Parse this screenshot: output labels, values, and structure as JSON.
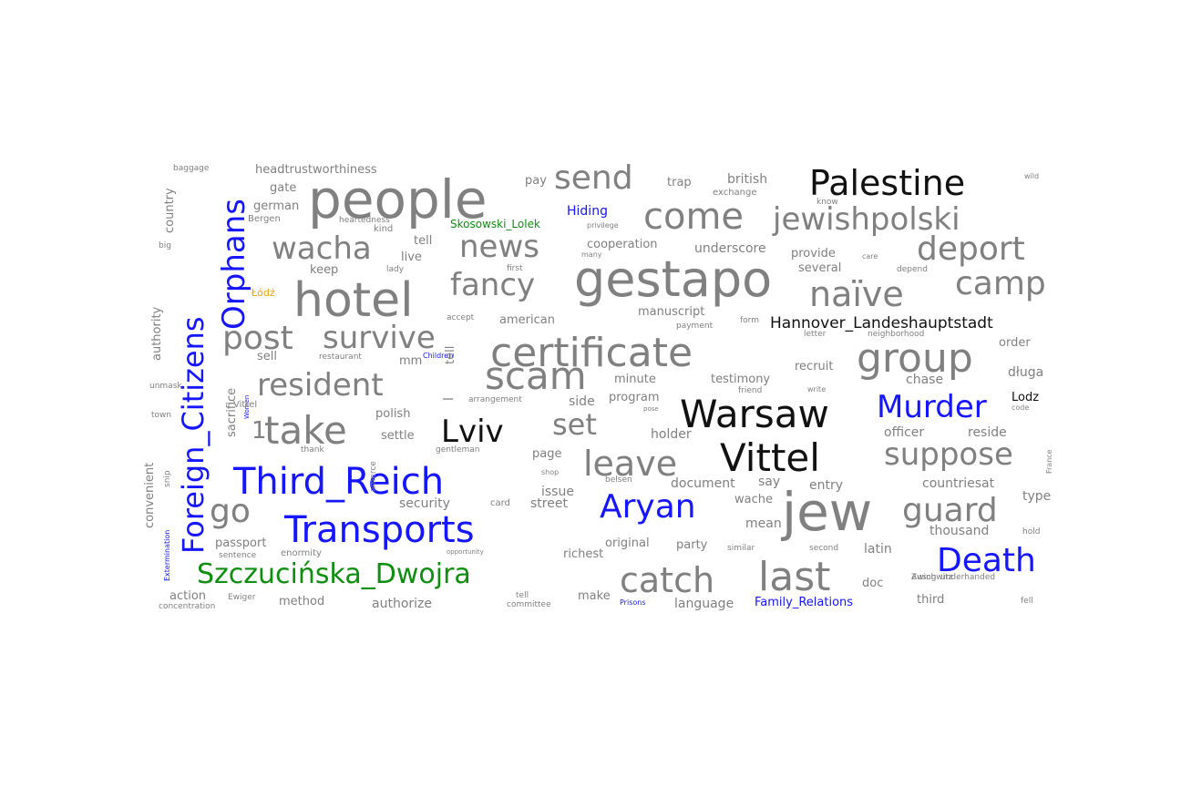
{
  "colors": {
    "gray": "#808080",
    "black": "#111111",
    "blue": "#1515ff",
    "green": "#0f8f0f",
    "orange": "#f5a000"
  },
  "words": [
    {
      "text": "people",
      "color": "gray"
    },
    {
      "text": "gestapo",
      "color": "gray"
    },
    {
      "text": "hotel",
      "color": "gray"
    },
    {
      "text": "jew",
      "color": "gray"
    },
    {
      "text": "certificate",
      "color": "gray"
    },
    {
      "text": "Warsaw",
      "color": "black"
    },
    {
      "text": "Vittel",
      "color": "black"
    },
    {
      "text": "Palestine",
      "color": "black"
    },
    {
      "text": "Lviv",
      "color": "black"
    },
    {
      "text": "Hannover_Landeshauptstadt",
      "color": "black"
    },
    {
      "text": "Lodz",
      "color": "black"
    },
    {
      "text": "Third_Reich",
      "color": "blue"
    },
    {
      "text": "Transports",
      "color": "blue"
    },
    {
      "text": "Foreign_Citizens",
      "color": "blue"
    },
    {
      "text": "Orphans",
      "color": "blue"
    },
    {
      "text": "Aryan",
      "color": "blue"
    },
    {
      "text": "Murder",
      "color": "blue"
    },
    {
      "text": "Death",
      "color": "blue"
    },
    {
      "text": "Hiding",
      "color": "blue"
    },
    {
      "text": "Family_Relations",
      "color": "blue"
    },
    {
      "text": "Children",
      "color": "blue"
    },
    {
      "text": "Prisons",
      "color": "blue"
    },
    {
      "text": "Extermination",
      "color": "blue"
    },
    {
      "text": "Women",
      "color": "blue"
    },
    {
      "text": "Szczucińska_Dwojra",
      "color": "green"
    },
    {
      "text": "Skosowski_Lolek",
      "color": "green"
    },
    {
      "text": "Łódź",
      "color": "orange"
    },
    {
      "text": "come",
      "color": "gray"
    },
    {
      "text": "send",
      "color": "gray"
    },
    {
      "text": "jewishpolski",
      "color": "gray"
    },
    {
      "text": "deport",
      "color": "gray"
    },
    {
      "text": "camp",
      "color": "gray"
    },
    {
      "text": "naïve",
      "color": "gray"
    },
    {
      "text": "group",
      "color": "gray"
    },
    {
      "text": "fancy",
      "color": "gray"
    },
    {
      "text": "news",
      "color": "gray"
    },
    {
      "text": "wacha",
      "color": "gray"
    },
    {
      "text": "survive",
      "color": "gray"
    },
    {
      "text": "post",
      "color": "gray"
    },
    {
      "text": "scam",
      "color": "gray"
    },
    {
      "text": "resident",
      "color": "gray"
    },
    {
      "text": "take",
      "color": "gray"
    },
    {
      "text": "set",
      "color": "gray"
    },
    {
      "text": "leave",
      "color": "gray"
    },
    {
      "text": "suppose",
      "color": "gray"
    },
    {
      "text": "guard",
      "color": "gray"
    },
    {
      "text": "catch",
      "color": "gray"
    },
    {
      "text": "last",
      "color": "gray"
    },
    {
      "text": "go",
      "color": "gray"
    },
    {
      "text": "headtrustworthiness",
      "color": "gray"
    },
    {
      "text": "baggage",
      "color": "gray"
    },
    {
      "text": "country",
      "color": "gray"
    },
    {
      "text": "gate",
      "color": "gray"
    },
    {
      "text": "german",
      "color": "gray"
    },
    {
      "text": "Bergen",
      "color": "gray"
    },
    {
      "text": "big",
      "color": "gray"
    },
    {
      "text": "pay",
      "color": "gray"
    },
    {
      "text": "trap",
      "color": "gray"
    },
    {
      "text": "british",
      "color": "gray"
    },
    {
      "text": "exchange",
      "color": "gray"
    },
    {
      "text": "know",
      "color": "gray"
    },
    {
      "text": "wild",
      "color": "gray"
    },
    {
      "text": "heartedness",
      "color": "gray"
    },
    {
      "text": "kind",
      "color": "gray"
    },
    {
      "text": "privilege",
      "color": "gray"
    },
    {
      "text": "tell",
      "color": "gray"
    },
    {
      "text": "cooperation",
      "color": "gray"
    },
    {
      "text": "underscore",
      "color": "gray"
    },
    {
      "text": "provide",
      "color": "gray"
    },
    {
      "text": "care",
      "color": "gray"
    },
    {
      "text": "live",
      "color": "gray"
    },
    {
      "text": "many",
      "color": "gray"
    },
    {
      "text": "keep",
      "color": "gray"
    },
    {
      "text": "lady",
      "color": "gray"
    },
    {
      "text": "first",
      "color": "gray"
    },
    {
      "text": "several",
      "color": "gray"
    },
    {
      "text": "depend",
      "color": "gray"
    },
    {
      "text": "authority",
      "color": "gray"
    },
    {
      "text": "accept",
      "color": "gray"
    },
    {
      "text": "american",
      "color": "gray"
    },
    {
      "text": "manuscript",
      "color": "gray"
    },
    {
      "text": "payment",
      "color": "gray"
    },
    {
      "text": "form",
      "color": "gray"
    },
    {
      "text": "letter",
      "color": "gray"
    },
    {
      "text": "neighborhood",
      "color": "gray"
    },
    {
      "text": "order",
      "color": "gray"
    },
    {
      "text": "sell",
      "color": "gray"
    },
    {
      "text": "mm",
      "color": "gray"
    },
    {
      "text": "restaurant",
      "color": "gray"
    },
    {
      "text": "minute",
      "color": "gray"
    },
    {
      "text": "testimony",
      "color": "gray"
    },
    {
      "text": "friend",
      "color": "gray"
    },
    {
      "text": "recruit",
      "color": "gray"
    },
    {
      "text": "write",
      "color": "gray"
    },
    {
      "text": "chase",
      "color": "gray"
    },
    {
      "text": "długa",
      "color": "gray"
    },
    {
      "text": "unmask",
      "color": "gray"
    },
    {
      "text": "town",
      "color": "gray"
    },
    {
      "text": "sacrifice",
      "color": "gray"
    },
    {
      "text": "tell",
      "color": "gray"
    },
    {
      "text": "arrangement",
      "color": "gray"
    },
    {
      "text": "side",
      "color": "gray"
    },
    {
      "text": "program",
      "color": "gray"
    },
    {
      "text": "pose",
      "color": "gray"
    },
    {
      "text": "code",
      "color": "gray"
    },
    {
      "text": "polish",
      "color": "gray"
    },
    {
      "text": "settle",
      "color": "gray"
    },
    {
      "text": "holder",
      "color": "gray"
    },
    {
      "text": "officer",
      "color": "gray"
    },
    {
      "text": "reside",
      "color": "gray"
    },
    {
      "text": "thank",
      "color": "gray"
    },
    {
      "text": "gentleman",
      "color": "gray"
    },
    {
      "text": "page",
      "color": "gray"
    },
    {
      "text": "shop",
      "color": "gray"
    },
    {
      "text": "belsen",
      "color": "gray"
    },
    {
      "text": "document",
      "color": "gray"
    },
    {
      "text": "say",
      "color": "gray"
    },
    {
      "text": "entry",
      "color": "gray"
    },
    {
      "text": "countriesat",
      "color": "gray"
    },
    {
      "text": "France",
      "color": "gray"
    },
    {
      "text": "convenient",
      "color": "gray"
    },
    {
      "text": "snip",
      "color": "gray"
    },
    {
      "text": "amerce",
      "color": "gray"
    },
    {
      "text": "issue",
      "color": "gray"
    },
    {
      "text": "security",
      "color": "gray"
    },
    {
      "text": "card",
      "color": "gray"
    },
    {
      "text": "street",
      "color": "gray"
    },
    {
      "text": "wache",
      "color": "gray"
    },
    {
      "text": "type",
      "color": "gray"
    },
    {
      "text": "mean",
      "color": "gray"
    },
    {
      "text": "thousand",
      "color": "gray"
    },
    {
      "text": "hold",
      "color": "gray"
    },
    {
      "text": "passport",
      "color": "gray"
    },
    {
      "text": "sentence",
      "color": "gray"
    },
    {
      "text": "enormity",
      "color": "gray"
    },
    {
      "text": "opportunity",
      "color": "gray"
    },
    {
      "text": "richest",
      "color": "gray"
    },
    {
      "text": "original",
      "color": "gray"
    },
    {
      "text": "party",
      "color": "gray"
    },
    {
      "text": "similar",
      "color": "gray"
    },
    {
      "text": "second",
      "color": "gray"
    },
    {
      "text": "latin",
      "color": "gray"
    },
    {
      "text": "action",
      "color": "gray"
    },
    {
      "text": "Ewiger",
      "color": "gray"
    },
    {
      "text": "method",
      "color": "gray"
    },
    {
      "text": "concentration",
      "color": "gray"
    },
    {
      "text": "authorize",
      "color": "gray"
    },
    {
      "text": "tell",
      "color": "gray"
    },
    {
      "text": "committee",
      "color": "gray"
    },
    {
      "text": "make",
      "color": "gray"
    },
    {
      "text": "language",
      "color": "gray"
    },
    {
      "text": "doc",
      "color": "gray"
    },
    {
      "text": "Auschwitz",
      "color": "gray"
    },
    {
      "text": "underhanded",
      "color": "gray"
    },
    {
      "text": "third",
      "color": "gray"
    },
    {
      "text": "fell",
      "color": "gray"
    },
    {
      "text": "l",
      "color": "gray"
    },
    {
      "text": "1",
      "color": "gray"
    },
    {
      "text": "Vittel",
      "color": "gray"
    },
    {
      "text": "Zwing",
      "color": "gray"
    }
  ]
}
